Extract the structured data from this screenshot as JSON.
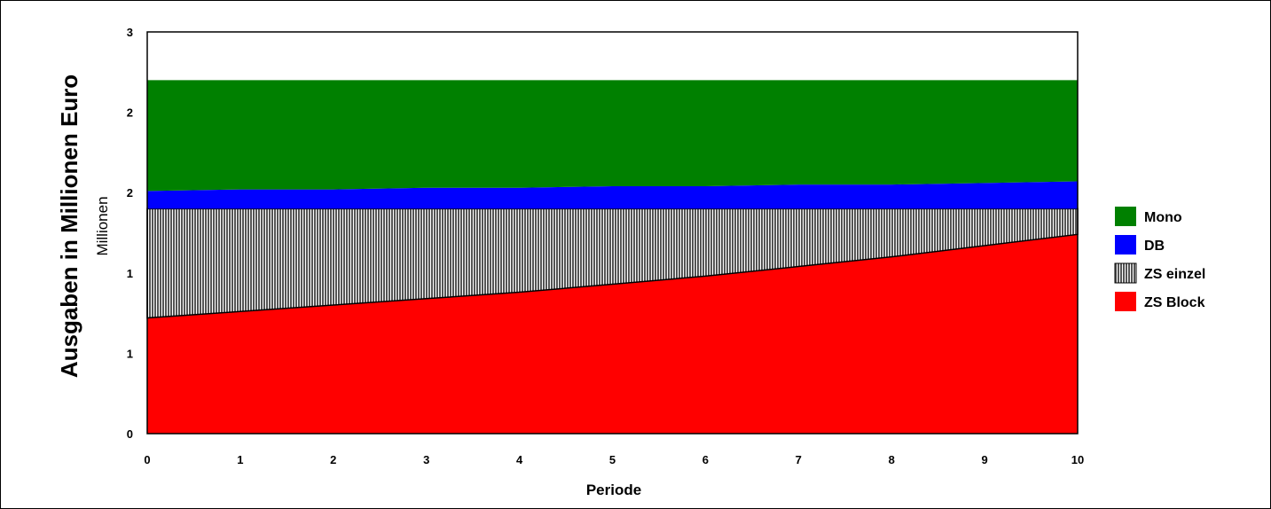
{
  "chart_data": {
    "type": "area",
    "stacked": true,
    "xlabel": "Periode",
    "ylabel": "Ausgaben in Millionen Euro",
    "yunit": "Millionen",
    "x": [
      0,
      1,
      2,
      3,
      4,
      5,
      6,
      7,
      8,
      9,
      10
    ],
    "xlim": [
      0,
      10
    ],
    "ylim": [
      0,
      2.5
    ],
    "ytick_values": [
      0,
      0.5,
      1.0,
      1.5,
      2.0,
      2.5
    ],
    "ytick_labels": [
      "0",
      "1",
      "1",
      "2",
      "2",
      "3"
    ],
    "grid": false,
    "legend_position": "right",
    "series": [
      {
        "name": "ZS Block",
        "color": "#ff0000",
        "pattern": "solid",
        "values": [
          0.72,
          0.76,
          0.8,
          0.84,
          0.88,
          0.93,
          0.98,
          1.04,
          1.1,
          1.17,
          1.24
        ]
      },
      {
        "name": "ZS einzel",
        "color": "#808080",
        "pattern": "vertical-hatch",
        "values": [
          0.68,
          0.64,
          0.6,
          0.56,
          0.52,
          0.47,
          0.42,
          0.36,
          0.3,
          0.23,
          0.16
        ]
      },
      {
        "name": "DB",
        "color": "#0000ff",
        "pattern": "solid",
        "values": [
          0.11,
          0.12,
          0.12,
          0.13,
          0.13,
          0.14,
          0.14,
          0.15,
          0.15,
          0.16,
          0.17
        ]
      },
      {
        "name": "Mono",
        "color": "#008000",
        "pattern": "solid",
        "values": [
          0.69,
          0.68,
          0.68,
          0.67,
          0.67,
          0.66,
          0.66,
          0.65,
          0.65,
          0.64,
          0.63
        ]
      }
    ],
    "legend_order": [
      "Mono",
      "DB",
      "ZS einzel",
      "ZS Block"
    ]
  }
}
